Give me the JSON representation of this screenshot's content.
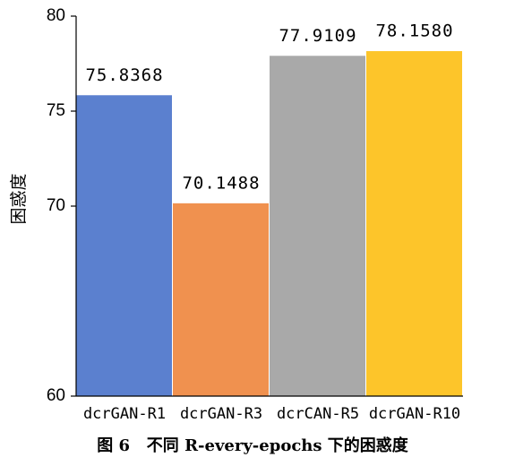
{
  "chart_data": {
    "type": "bar",
    "title": "图 6   不同 R-every-epochs 下的困惑度",
    "y_label": "困惑度",
    "categories": [
      "dcrGAN-R1",
      "dcrGAN-R3",
      "dcrCAN-R5",
      "dcrGAN-R10"
    ],
    "values": [
      75.8368,
      70.1488,
      77.9109,
      78.158
    ],
    "value_labels": [
      "75.8368",
      "70.1488",
      "77.9109",
      "78.1580"
    ],
    "colors": [
      "#5b80cf",
      "#f0914f",
      "#a9a9a9",
      "#fdc52a"
    ],
    "ylim": [
      60,
      80
    ],
    "yticks": [
      60,
      70,
      75,
      80
    ]
  }
}
